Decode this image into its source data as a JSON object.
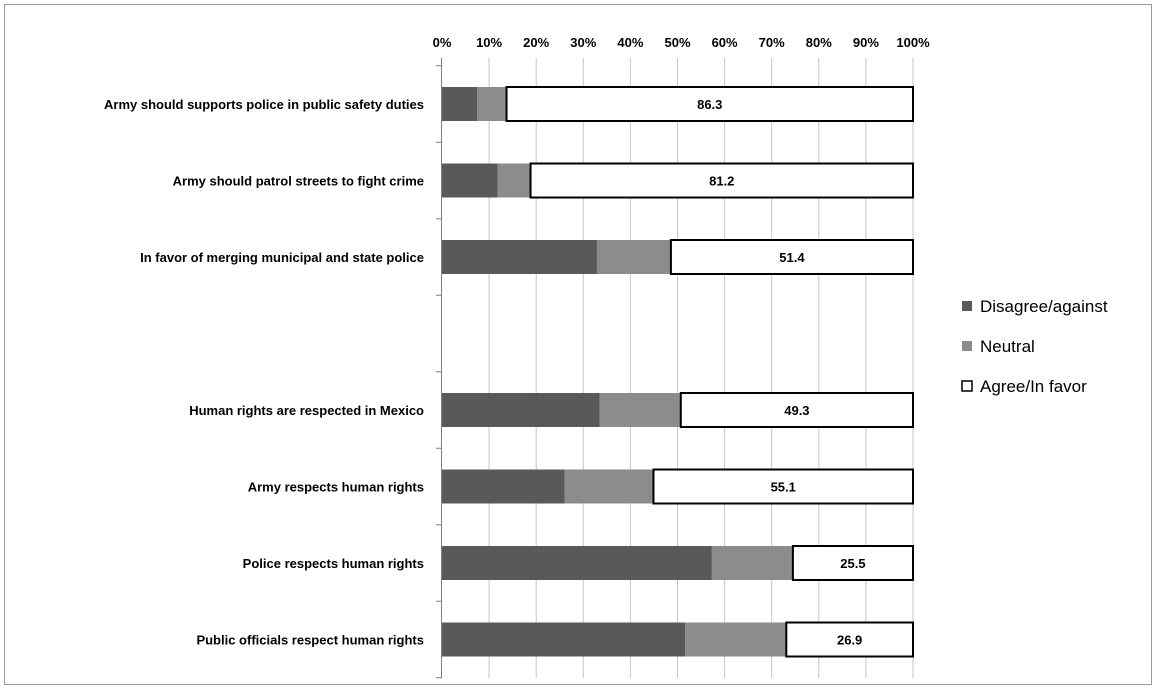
{
  "chart_data": {
    "type": "bar",
    "orientation": "horizontal",
    "stacked": "percent",
    "title": "",
    "xlabel": "",
    "ylabel": "",
    "xlim": [
      0,
      100
    ],
    "ticks": [
      "0%",
      "10%",
      "20%",
      "30%",
      "40%",
      "50%",
      "60%",
      "70%",
      "80%",
      "90%",
      "100%"
    ],
    "grid": true,
    "legend_position": "right",
    "categories": [
      "Army should supports police in public safety duties",
      "Army should patrol streets to fight crime",
      "In favor of merging municipal and state police",
      "",
      "Human rights are respected in Mexico",
      "Army respects human rights",
      "Police respects human rights",
      "Public officials respect human rights"
    ],
    "series": [
      {
        "name": "Disagree/against",
        "color": "#595959",
        "values": [
          7.5,
          11.8,
          32.9,
          null,
          33.5,
          26.0,
          57.3,
          51.6
        ]
      },
      {
        "name": "Neutral",
        "color": "#8c8c8c",
        "values": [
          6.2,
          7.0,
          15.7,
          null,
          17.2,
          18.9,
          17.2,
          21.5
        ]
      },
      {
        "name": "Agree/In favor",
        "color": "#ffffff",
        "values": [
          86.3,
          81.2,
          51.4,
          null,
          49.3,
          55.1,
          25.5,
          26.9
        ],
        "labels": [
          "86.3",
          "81.2",
          "51.4",
          "",
          "49.3",
          "55.1",
          "25.5",
          "26.9"
        ]
      }
    ]
  }
}
